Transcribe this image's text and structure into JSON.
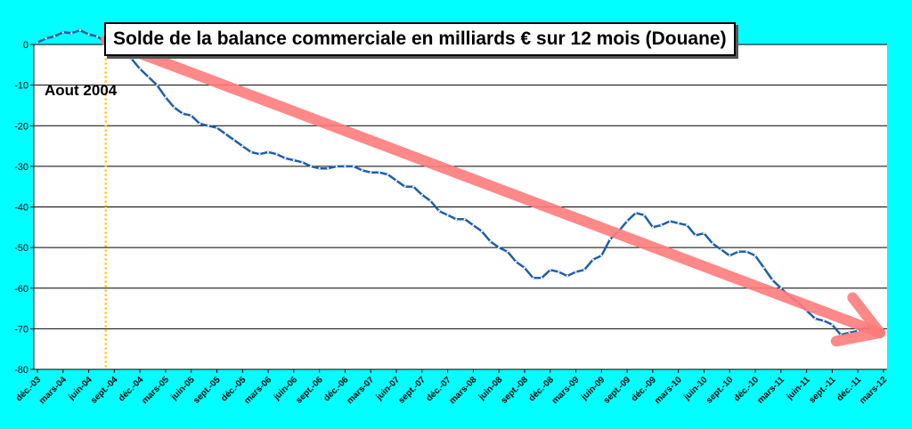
{
  "chart_data": {
    "type": "line",
    "title": "Solde de la balance commerciale en milliards € sur 12 mois (Douane)",
    "annotation": "Aout 2004",
    "ylim": [
      -80,
      0
    ],
    "yticks": [
      0,
      -10,
      -20,
      -30,
      -40,
      -50,
      -60,
      -70,
      -80
    ],
    "xticks": [
      "déc.-03",
      "mars-04",
      "juin-04",
      "sept.-04",
      "déc.-04",
      "mars-05",
      "juin-05",
      "sept.-05",
      "déc.-05",
      "mars-06",
      "juin-06",
      "sept.-06",
      "déc.-06",
      "mars-07",
      "juin-07",
      "sept.-07",
      "déc.-07",
      "mars-08",
      "juin-08",
      "sept.-08",
      "déc.-08",
      "mars-09",
      "juin-09",
      "sept.-09",
      "déc.-09",
      "mars-10",
      "juin-10",
      "sept.-10",
      "déc.-10",
      "mars-11",
      "juin-11",
      "sept.-11",
      "déc.-11",
      "mars-12"
    ],
    "grid": true,
    "line_color": "#1F5FA8",
    "trend_color": "#FF7B7B",
    "marker_color": "#FFC000",
    "series": [
      {
        "values": [
          0.5,
          1.5,
          2,
          3,
          2.8,
          3.5,
          2.5,
          2,
          0.5,
          -1,
          -2,
          -3.5,
          -6,
          -8,
          -10,
          -13,
          -15.5,
          -17,
          -17.5,
          -19.5,
          -20,
          -20.5,
          -22,
          -23.5,
          -25,
          -26.5,
          -27,
          -26.5,
          -27,
          -28,
          -28.5,
          -29,
          -30,
          -30.5,
          -30.5,
          -30,
          -30,
          -30,
          -31,
          -31.5,
          -31.5,
          -32,
          -33.5,
          -35,
          -35,
          -37,
          -38.5,
          -41,
          -42,
          -43,
          -43,
          -44.5,
          -46,
          -48.5,
          -50,
          -51,
          -53.5,
          -55,
          -57.5,
          -57.5,
          -55.5,
          -56,
          -57,
          -56,
          -55.5,
          -53,
          -52,
          -48,
          -46,
          -43.5,
          -41.5,
          -42,
          -45,
          -44.5,
          -43.5,
          -44,
          -44.5,
          -47,
          -46.5,
          -49,
          -50.5,
          -52,
          -51,
          -51,
          -52,
          -55,
          -58,
          -60,
          -62,
          -63.5,
          -65.5,
          -67.5,
          -68,
          -69,
          -71.5,
          -71,
          -70.5,
          -69.5,
          -70,
          -70.5
        ]
      }
    ]
  }
}
